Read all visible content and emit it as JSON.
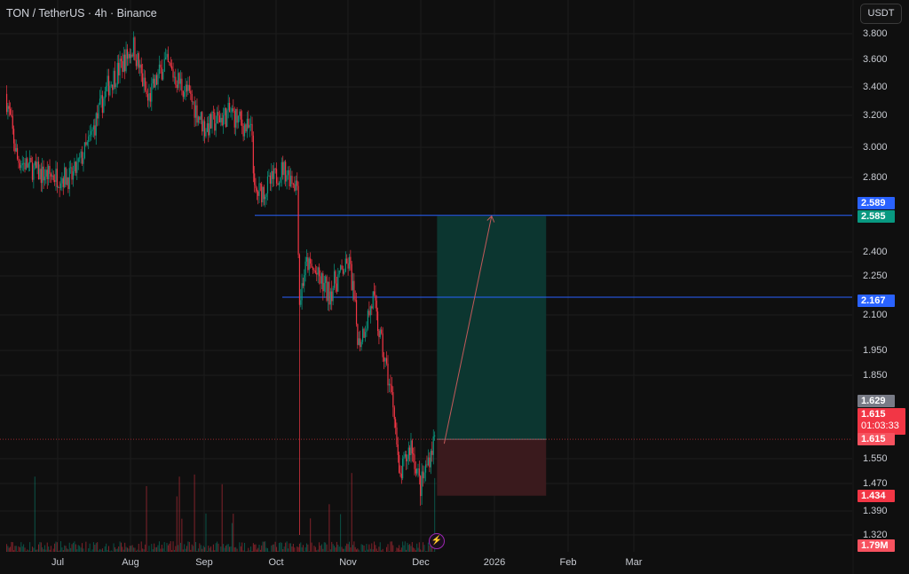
{
  "header": {
    "symbol_title": "TON / TetherUS · 4h · Binance",
    "currency_button": "USDT"
  },
  "colors": {
    "up": "#089981",
    "down": "#f23645",
    "background": "#0f0f0f",
    "line": "#2962ff",
    "target_zone": "#0c3630",
    "stop_zone": "#3a1a1d"
  },
  "chart_data": {
    "type": "candlestick",
    "title": "TON / TetherUS · 4h · Binance",
    "y_scale": "log",
    "y_ticks": [
      "3.800",
      "3.600",
      "3.400",
      "3.200",
      "3.000",
      "2.800",
      "2.400",
      "2.250",
      "2.100",
      "1.950",
      "1.850",
      "1.550",
      "1.470",
      "1.390",
      "1.320"
    ],
    "x_ticks": [
      "Jul",
      "Aug",
      "Sep",
      "Oct",
      "Nov",
      "Dec",
      "2026",
      "Feb",
      "Mar"
    ],
    "price_path": [
      [
        "2025-06-09",
        3.35
      ],
      [
        "2025-06-14",
        2.92
      ],
      [
        "2025-06-24",
        2.82
      ],
      [
        "2025-07-07",
        2.8
      ],
      [
        "2025-07-14",
        3.02
      ],
      [
        "2025-07-22",
        3.4
      ],
      [
        "2025-08-02",
        3.7
      ],
      [
        "2025-08-08",
        3.3
      ],
      [
        "2025-08-15",
        3.58
      ],
      [
        "2025-08-25",
        3.35
      ],
      [
        "2025-09-01",
        3.12
      ],
      [
        "2025-09-12",
        3.22
      ],
      [
        "2025-09-21",
        3.08
      ],
      [
        "2025-09-22",
        2.7
      ],
      [
        "2025-09-27",
        2.74
      ],
      [
        "2025-10-04",
        2.86
      ],
      [
        "2025-10-10",
        2.76
      ],
      [
        "2025-10-11",
        2.15
      ],
      [
        "2025-10-14",
        2.33
      ],
      [
        "2025-10-23",
        2.18
      ],
      [
        "2025-11-01",
        2.33
      ],
      [
        "2025-11-05",
        1.98
      ],
      [
        "2025-11-11",
        2.16
      ],
      [
        "2025-11-14",
        2.0
      ],
      [
        "2025-11-20",
        1.72
      ],
      [
        "2025-11-22",
        1.48
      ],
      [
        "2025-11-27",
        1.6
      ],
      [
        "2025-12-01",
        1.46
      ],
      [
        "2025-12-07",
        1.62
      ]
    ],
    "crash_wick_low": 1.32,
    "horizontal_lines": [
      {
        "price": 2.589
      },
      {
        "price": 2.167
      }
    ],
    "long_position": {
      "entry": 1.615,
      "target": 2.585,
      "stop": 1.434,
      "start": "2025-12-08",
      "end": "2026-01-23"
    },
    "projection_arrow": {
      "from": [
        "2025-12-11",
        1.6
      ],
      "to": [
        "2025-12-31",
        2.585
      ]
    },
    "price_labels": {
      "line_upper": "2.589",
      "target": "2.585",
      "line_lower": "2.167",
      "prev_close": "1.629",
      "last_price": "1.615",
      "countdown": "01:03:33",
      "entry": "1.615",
      "stop": "1.434",
      "volume": "1.79M"
    }
  }
}
